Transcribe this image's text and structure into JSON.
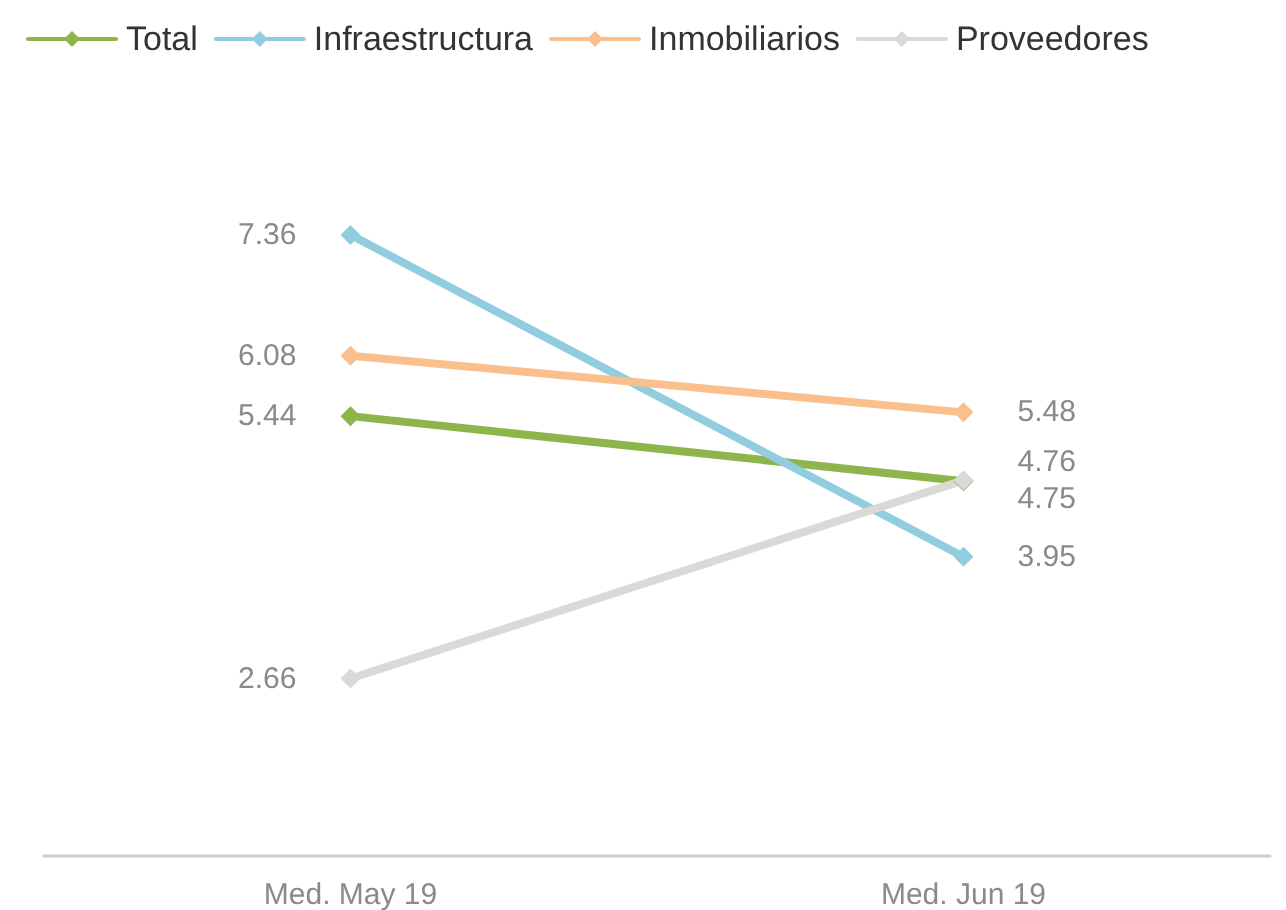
{
  "chart_data": {
    "type": "line",
    "categories": [
      "Med. May 19",
      "Med. Jun 19"
    ],
    "series": [
      {
        "name": "Total",
        "color": "#8db54b",
        "values": [
          5.44,
          4.75
        ]
      },
      {
        "name": "Infraestructura",
        "color": "#92cddf",
        "values": [
          7.36,
          3.95
        ]
      },
      {
        "name": "Inmobiliarios",
        "color": "#f9c08e",
        "values": [
          6.08,
          5.48
        ]
      },
      {
        "name": "Proveedores",
        "color": "#d9d9d6",
        "values": [
          2.66,
          4.76
        ]
      }
    ],
    "data_labels": true,
    "legend": "top left",
    "marker": "diamond",
    "line_style": "solid"
  }
}
